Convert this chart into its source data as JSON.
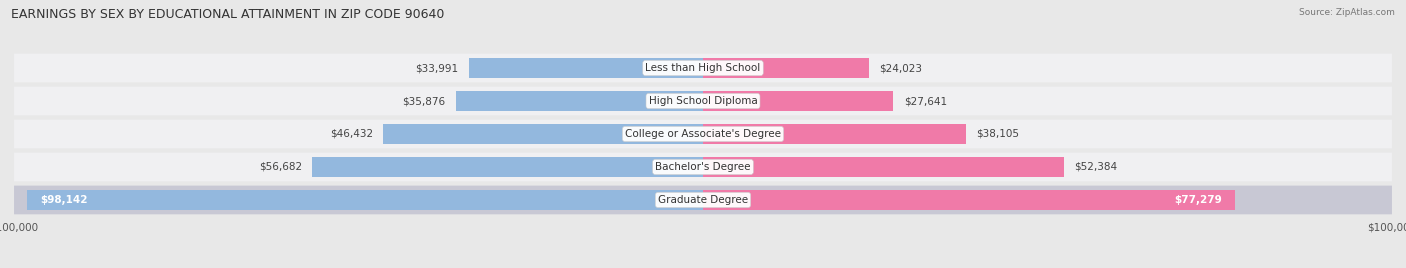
{
  "title": "EARNINGS BY SEX BY EDUCATIONAL ATTAINMENT IN ZIP CODE 90640",
  "source": "Source: ZipAtlas.com",
  "categories": [
    "Less than High School",
    "High School Diploma",
    "College or Associate's Degree",
    "Bachelor's Degree",
    "Graduate Degree"
  ],
  "male_values": [
    33991,
    35876,
    46432,
    56682,
    98142
  ],
  "female_values": [
    24023,
    27641,
    38105,
    52384,
    77279
  ],
  "male_color": "#93b8de",
  "female_color": "#f07aa8",
  "dark_text": "#444444",
  "white_text": "#ffffff",
  "max_val": 100000,
  "bg_color": "#e8e8e8",
  "row_bg": "#f0f0f0",
  "row_bg_last": "#d0d0d8",
  "title_fontsize": 9.0,
  "cat_fontsize": 7.5,
  "value_fontsize": 7.5,
  "source_fontsize": 6.5,
  "legend_fontsize": 7.5,
  "bar_height": 0.62
}
